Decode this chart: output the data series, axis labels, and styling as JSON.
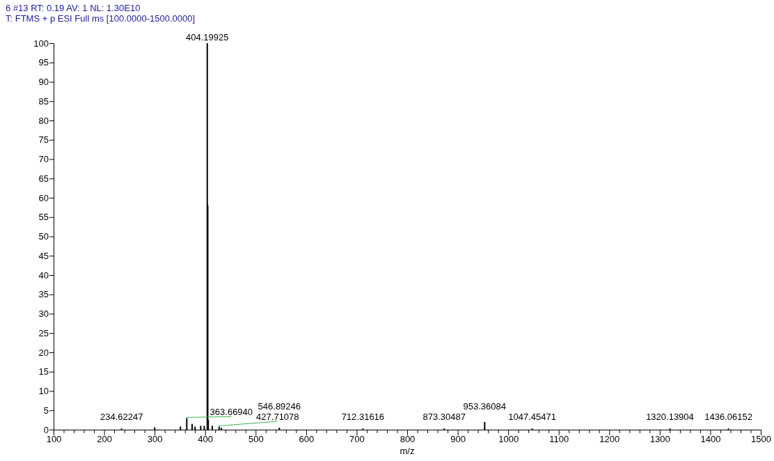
{
  "chart_data": {
    "type": "bar",
    "title": "6 #13  RT: 0.19  AV: 1  NL: 1.30E10",
    "subtitle": "T: FTMS + p ESI Full ms [100.0000-1500.0000]",
    "xlabel": "m/z",
    "color": "#000000",
    "x": [
      234.62247,
      300.1,
      351.2,
      363.6694,
      374.2,
      380.1,
      391.2,
      398.2,
      404.19925,
      405.2,
      406.2,
      414.2,
      427.71078,
      432.2,
      546.89246,
      712.31616,
      873.30487,
      953.36084,
      1047.45471,
      1320.13904,
      1436.06152
    ],
    "values": [
      0.3,
      0.6,
      0.8,
      3,
      1.5,
      0.8,
      1,
      1,
      100,
      58,
      2.5,
      1,
      0.8,
      0.5,
      0.5,
      0.3,
      0.3,
      2,
      0.3,
      0.3,
      0.3
    ],
    "xlim": [
      100,
      1500
    ],
    "xticks": [
      100,
      {
        "value": 120,
        "label": null
      },
      {
        "value": 140,
        "label": null
      },
      {
        "value": 160,
        "label": null
      },
      {
        "value": 180,
        "label": null
      },
      200,
      {
        "value": 220,
        "label": null
      },
      {
        "value": 240,
        "label": null
      },
      {
        "value": 260,
        "label": null
      },
      {
        "value": 280,
        "label": null
      },
      300,
      {
        "value": 320,
        "label": null
      },
      {
        "value": 340,
        "label": null
      },
      {
        "value": 360,
        "label": null
      },
      {
        "value": 380,
        "label": null
      },
      400,
      {
        "value": 420,
        "label": null
      },
      {
        "value": 440,
        "label": null
      },
      {
        "value": 460,
        "label": null
      },
      {
        "value": 480,
        "label": null
      },
      500,
      {
        "value": 520,
        "label": null
      },
      {
        "value": 540,
        "label": null
      },
      {
        "value": 560,
        "label": null
      },
      {
        "value": 580,
        "label": null
      },
      600,
      {
        "value": 620,
        "label": null
      },
      {
        "value": 640,
        "label": null
      },
      {
        "value": 660,
        "label": null
      },
      {
        "value": 680,
        "label": null
      },
      700,
      {
        "value": 720,
        "label": null
      },
      {
        "value": 740,
        "label": null
      },
      {
        "value": 760,
        "label": null
      },
      {
        "value": 780,
        "label": null
      },
      800,
      {
        "value": 820,
        "label": null
      },
      {
        "value": 840,
        "label": null
      },
      {
        "value": 860,
        "label": null
      },
      {
        "value": 880,
        "label": null
      },
      900,
      {
        "value": 920,
        "label": null
      },
      {
        "value": 940,
        "label": null
      },
      {
        "value": 960,
        "label": null
      },
      {
        "value": 980,
        "label": null
      },
      1000,
      {
        "value": 1020,
        "label": null
      },
      {
        "value": 1040,
        "label": null
      },
      {
        "value": 1060,
        "label": null
      },
      {
        "value": 1080,
        "label": null
      },
      1100,
      {
        "value": 1120,
        "label": null
      },
      {
        "value": 1140,
        "label": null
      },
      {
        "value": 1160,
        "label": null
      },
      {
        "value": 1180,
        "label": null
      },
      1200,
      {
        "value": 1220,
        "label": null
      },
      {
        "value": 1240,
        "label": null
      },
      {
        "value": 1260,
        "label": null
      },
      {
        "value": 1280,
        "label": null
      },
      1300,
      {
        "value": 1320,
        "label": null
      },
      {
        "value": 1340,
        "label": null
      },
      {
        "value": 1360,
        "label": null
      },
      {
        "value": 1380,
        "label": null
      },
      1400,
      {
        "value": 1420,
        "label": null
      },
      {
        "value": 1440,
        "label": null
      },
      {
        "value": 1460,
        "label": null
      },
      {
        "value": 1480,
        "label": null
      },
      1500
    ],
    "ylim": [
      0,
      100
    ],
    "yticks": [
      0,
      5,
      10,
      15,
      20,
      25,
      30,
      35,
      40,
      45,
      50,
      55,
      60,
      65,
      70,
      75,
      80,
      85,
      90,
      95,
      100
    ],
    "annotations": [
      {
        "text": "234.62247",
        "x": 234.62247,
        "y": 0.3
      },
      {
        "text": "363.66940",
        "x": 363.6694,
        "y": 3
      },
      {
        "text": "404.19925",
        "x": 404.19925,
        "y": 100
      },
      {
        "text": "427.71078",
        "x": 427.71078,
        "y": 0.8
      },
      {
        "text": "546.89246",
        "x": 546.89246,
        "y": 0.5
      },
      {
        "text": "712.31616",
        "x": 712.31616,
        "y": 0.3
      },
      {
        "text": "873.30487",
        "x": 873.30487,
        "y": 0.3
      },
      {
        "text": "953.36084",
        "x": 953.36084,
        "y": 2
      },
      {
        "text": "1047.45471",
        "x": 1047.45471,
        "y": 0.3
      },
      {
        "text": "1320.13904",
        "x": 1320.13904,
        "y": 0.3
      },
      {
        "text": "1436.06152",
        "x": 1436.06152,
        "y": 0.3
      }
    ]
  }
}
